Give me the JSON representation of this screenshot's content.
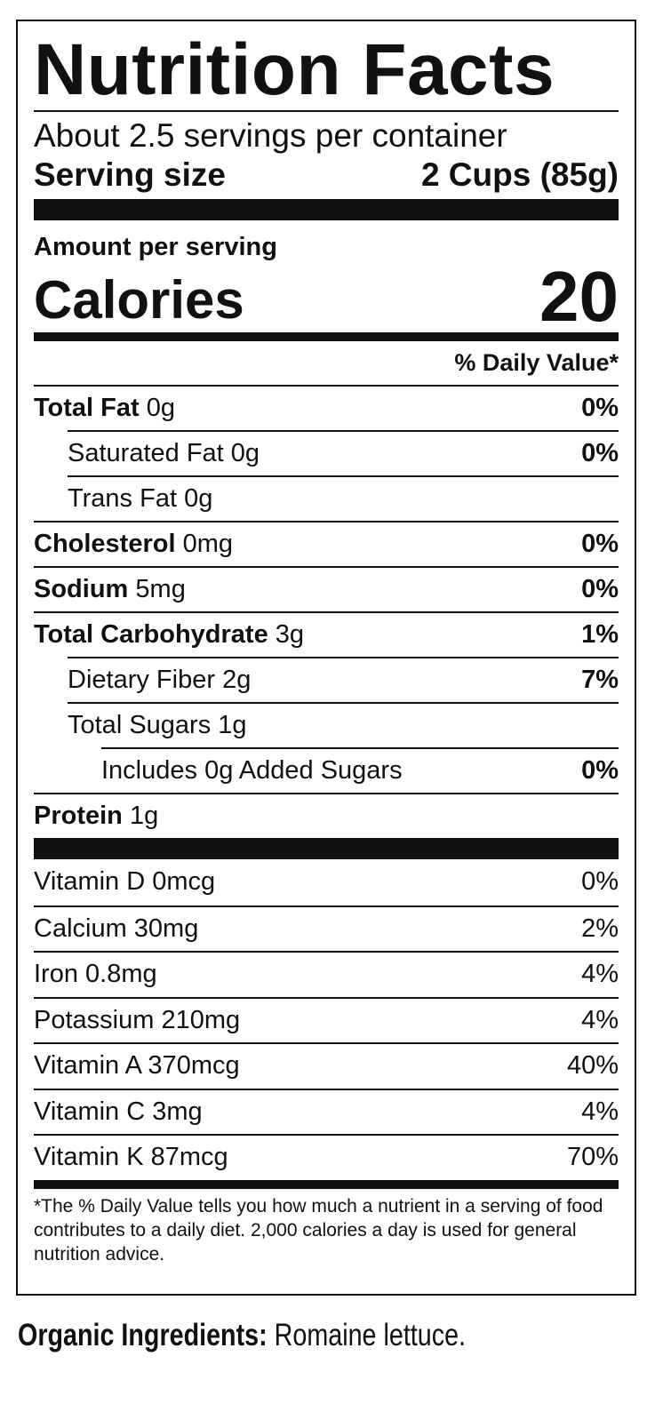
{
  "label": {
    "title": "Nutrition Facts",
    "servings_per_container": "About 2.5 servings per container",
    "serving_size_label": "Serving size",
    "serving_size_value": "2 Cups (85g)",
    "amount_per_serving": "Amount per serving",
    "calories_label": "Calories",
    "calories_value": "20",
    "daily_value_header": "% Daily Value*",
    "nutrients": [
      {
        "name": "Total Fat",
        "amount": "0g",
        "dv": "0%"
      },
      {
        "name": "Saturated Fat",
        "amount": "0g",
        "dv": "0%"
      },
      {
        "name": "Trans Fat",
        "amount": "0g",
        "dv": ""
      },
      {
        "name": "Cholesterol",
        "amount": "0mg",
        "dv": "0%"
      },
      {
        "name": "Sodium",
        "amount": "5mg",
        "dv": "0%"
      },
      {
        "name": "Total Carbohydrate",
        "amount": "3g",
        "dv": "1%"
      },
      {
        "name": "Dietary Fiber",
        "amount": "2g",
        "dv": "7%"
      },
      {
        "name": "Total Sugars",
        "amount": "1g",
        "dv": ""
      },
      {
        "name": "Includes 0g Added Sugars",
        "amount": "",
        "dv": "0%"
      },
      {
        "name": "Protein",
        "amount": "1g",
        "dv": ""
      }
    ],
    "vitamins": [
      {
        "name": "Vitamin D 0mcg",
        "dv": "0%"
      },
      {
        "name": "Calcium 30mg",
        "dv": "2%"
      },
      {
        "name": "Iron 0.8mg",
        "dv": "4%"
      },
      {
        "name": "Potassium 210mg",
        "dv": "4%"
      },
      {
        "name": "Vitamin A 370mcg",
        "dv": "40%"
      },
      {
        "name": "Vitamin C 3mg",
        "dv": "4%"
      },
      {
        "name": "Vitamin K 87mcg",
        "dv": "70%"
      }
    ],
    "footnote": "*The % Daily Value tells you how much a nutrient in a serving of food contributes to a daily diet. 2,000 calories a day is used for general nutrition advice."
  },
  "ingredients": {
    "label": "Organic Ingredients:",
    "text": "Romaine lettuce."
  }
}
